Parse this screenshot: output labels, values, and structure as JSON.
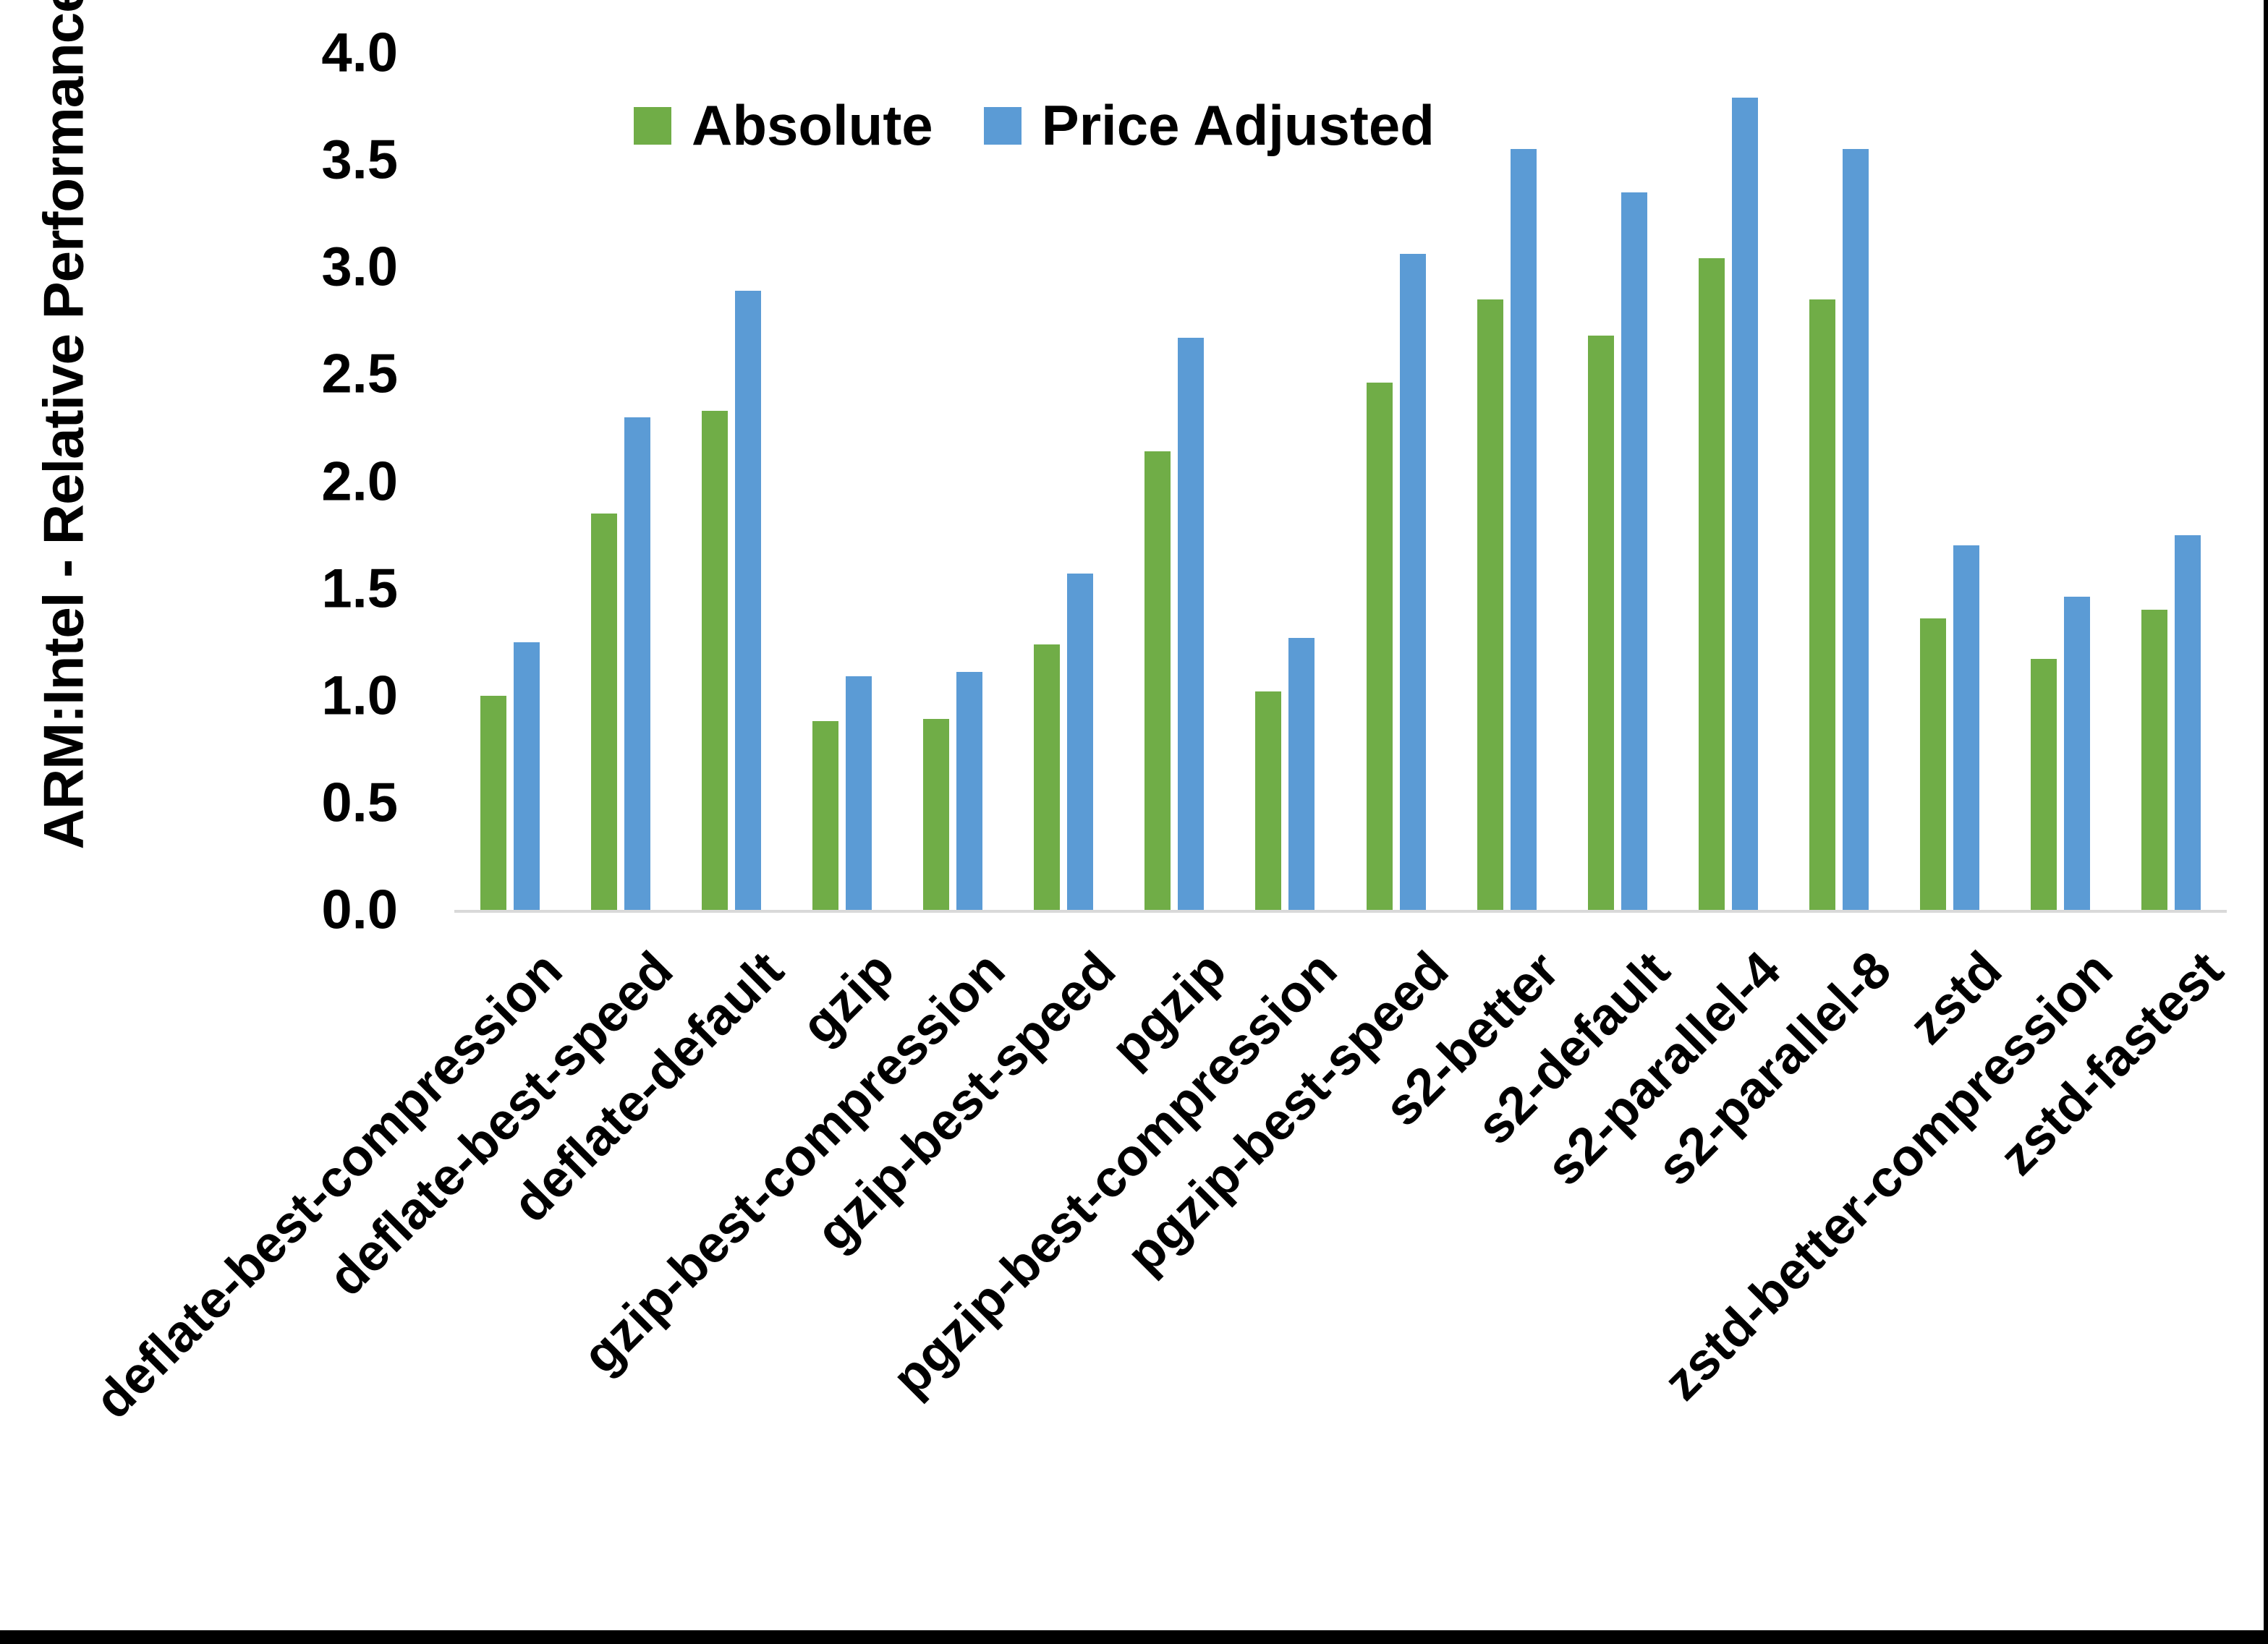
{
  "figure": {
    "background": "#ffffff",
    "border_color": "#000000"
  },
  "chart_data": {
    "type": "bar",
    "title": "",
    "xlabel": "",
    "ylabel": "ARM:Intel - Relative Performance",
    "ylim": [
      0.0,
      4.0
    ],
    "ytick_step": 0.5,
    "yticks": [
      "0.0",
      "0.5",
      "1.0",
      "1.5",
      "2.0",
      "2.5",
      "3.0",
      "3.5",
      "4.0"
    ],
    "grid": false,
    "legend_position": "top",
    "axis_line_color": "#d9d9d9",
    "text_color": "#000000",
    "categories": [
      "deflate-best-compression",
      "deflate-best-speed",
      "deflate-default",
      "gzip",
      "gzip-best-compression",
      "gzip-best-speed",
      "pgzip",
      "pgzip-best-compression",
      "pgzip-best-speed",
      "s2-better",
      "s2-default",
      "s2-parallel-4",
      "s2-parallel-8",
      "zstd",
      "zstd-better-compression",
      "zstd-fastest"
    ],
    "series": [
      {
        "name": "Absolute",
        "color": "#70AD47",
        "values": [
          1.0,
          1.85,
          2.33,
          0.88,
          0.89,
          1.24,
          2.14,
          1.02,
          2.46,
          2.85,
          2.68,
          3.04,
          2.85,
          1.36,
          1.17,
          1.4
        ]
      },
      {
        "name": "Price Adjusted",
        "color": "#5B9BD5",
        "values": [
          1.25,
          2.3,
          2.89,
          1.09,
          1.11,
          1.57,
          2.67,
          1.27,
          3.06,
          3.55,
          3.35,
          3.79,
          3.55,
          1.7,
          1.46,
          1.75
        ]
      }
    ]
  }
}
